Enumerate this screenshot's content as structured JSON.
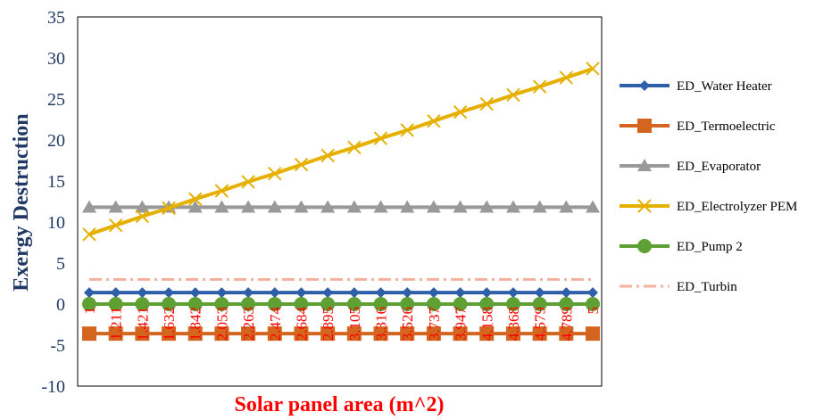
{
  "chart_data": {
    "type": "line",
    "xlabel": "Solar panel area (m^2)",
    "ylabel": "Exergy Destruction",
    "ylim": [
      -10,
      35
    ],
    "yticks": [
      -10,
      -5,
      0,
      5,
      10,
      15,
      20,
      25,
      30,
      35
    ],
    "categories": [
      "1",
      "1.211",
      "1.421",
      "1.632",
      "1.842",
      "2.053",
      "2.263",
      "2.474",
      "2.684",
      "2.895",
      "3.105",
      "3.316",
      "3.526",
      "3.737",
      "3.947",
      "4.158",
      "4.368",
      "4.579",
      "4.789",
      "5"
    ],
    "grid": false,
    "legend_position": "right",
    "series": [
      {
        "name": "ED_Water Heater",
        "color": "#2e5fa8",
        "marker": "diamond",
        "dash": "solid",
        "values": [
          1.4,
          1.4,
          1.4,
          1.4,
          1.4,
          1.4,
          1.4,
          1.4,
          1.4,
          1.4,
          1.4,
          1.4,
          1.4,
          1.4,
          1.4,
          1.4,
          1.4,
          1.4,
          1.4,
          1.4
        ]
      },
      {
        "name": "ED_Termoelectric",
        "color": "#d4651e",
        "marker": "square",
        "dash": "solid",
        "values": [
          -3.6,
          -3.6,
          -3.6,
          -3.6,
          -3.6,
          -3.6,
          -3.6,
          -3.6,
          -3.6,
          -3.6,
          -3.6,
          -3.6,
          -3.6,
          -3.6,
          -3.6,
          -3.6,
          -3.6,
          -3.6,
          -3.6,
          -3.6
        ]
      },
      {
        "name": "ED_Evaporator",
        "color": "#999999",
        "marker": "triangle",
        "dash": "solid",
        "values": [
          11.8,
          11.8,
          11.8,
          11.8,
          11.8,
          11.8,
          11.8,
          11.8,
          11.8,
          11.8,
          11.8,
          11.8,
          11.8,
          11.8,
          11.8,
          11.8,
          11.8,
          11.8,
          11.8,
          11.8
        ]
      },
      {
        "name": "ED_Electrolyzer PEM",
        "color": "#e6b000",
        "marker": "x",
        "dash": "solid",
        "values": [
          8.5,
          9.6,
          10.7,
          11.7,
          12.8,
          13.8,
          14.9,
          15.9,
          17.0,
          18.1,
          19.1,
          20.2,
          21.2,
          22.3,
          23.4,
          24.4,
          25.5,
          26.5,
          27.6,
          28.7
        ]
      },
      {
        "name": "ED_Pump 2",
        "color": "#5fa034",
        "marker": "circle",
        "dash": "solid",
        "values": [
          0,
          0,
          0,
          0,
          0,
          0,
          0,
          0,
          0,
          0,
          0,
          0,
          0,
          0,
          0,
          0,
          0,
          0,
          0,
          0
        ]
      },
      {
        "name": "ED_Turbin",
        "color": "#f4b09c",
        "marker": "none",
        "dash": "dashdot",
        "values": [
          3,
          3,
          3,
          3,
          3,
          3,
          3,
          3,
          3,
          3,
          3,
          3,
          3,
          3,
          3,
          3,
          3,
          3,
          3,
          3
        ]
      }
    ]
  }
}
